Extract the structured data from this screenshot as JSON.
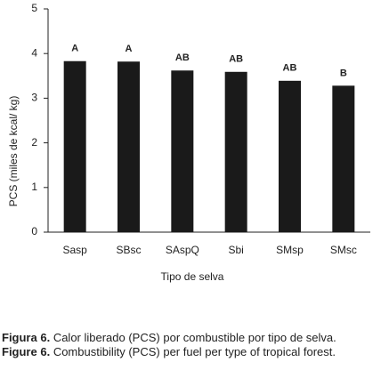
{
  "chart_data": {
    "type": "bar",
    "x_label": "Tipo de selva",
    "y_label": "PCS (miles de kcal/ kg)",
    "categories": [
      "Sasp",
      "SBsc",
      "SAspQ",
      "Sbi",
      "SMsp",
      "SMsc"
    ],
    "values": [
      3.83,
      3.82,
      3.62,
      3.59,
      3.39,
      3.28
    ],
    "annotations": [
      "A",
      "A",
      "AB",
      "AB",
      "AB",
      "B"
    ],
    "color": "#1a1a1a",
    "ylim": [
      0,
      5
    ],
    "yticks": [
      0,
      1,
      2,
      3,
      4,
      5
    ],
    "grid": false
  },
  "caption": {
    "es_label": "Figura 6.",
    "es_text": "Calor liberado (PCS) por combustible por tipo de selva.",
    "en_label": "Figure 6.",
    "en_text": "Combustibility (PCS) per fuel per type of tropical forest."
  }
}
